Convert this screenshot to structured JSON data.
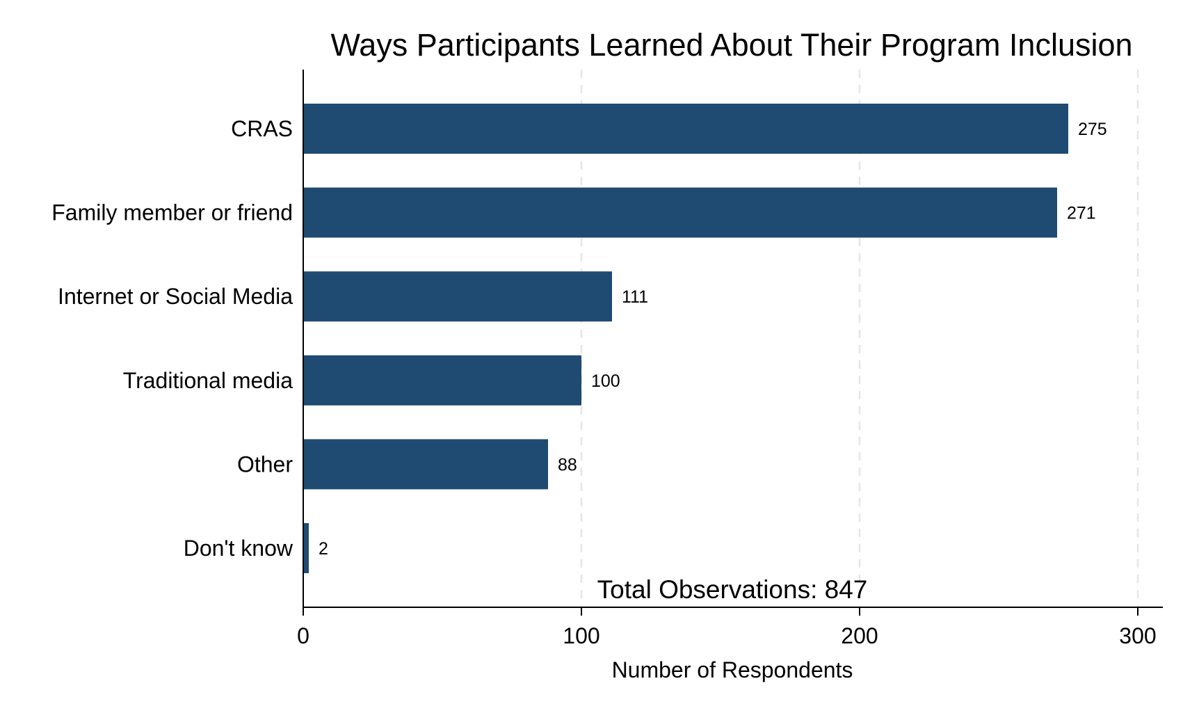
{
  "chart_data": {
    "type": "bar",
    "orientation": "horizontal",
    "title": "Ways Participants Learned About Their Program Inclusion",
    "xlabel": "Number of Respondents",
    "ylabel": "",
    "categories": [
      "CRAS",
      "Family member or friend",
      "Internet or Social Media",
      "Traditional media",
      "Other",
      "Don't know"
    ],
    "values": [
      275,
      271,
      111,
      100,
      88,
      2
    ],
    "value_labels": [
      "275",
      "271",
      "111",
      "100",
      "88",
      "2"
    ],
    "xlim": [
      0,
      310
    ],
    "xticks": [
      0,
      100,
      200,
      300
    ],
    "xtick_labels": [
      "0",
      "100",
      "200",
      "300"
    ],
    "grid": "vertical dashed",
    "annotation": "Total Observations: 847",
    "bar_color": "#1f4a72",
    "grid_color": "#e6e6e6"
  }
}
